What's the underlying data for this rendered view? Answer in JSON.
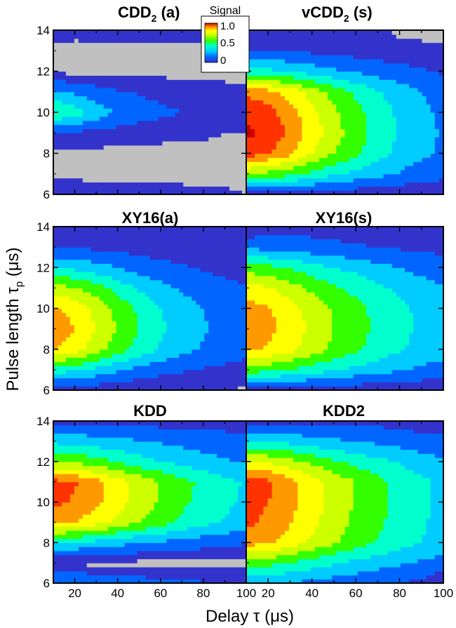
{
  "figure": {
    "ylabel": "Pulse length τ",
    "ylabel_sub": "p",
    "ylabel_unit": "(μs)",
    "xlabel": "Delay τ (μs)",
    "colorbar": {
      "title": "Signal",
      "ticks": [
        "1.0",
        "0.5",
        "0"
      ],
      "tick_values": [
        1.0,
        0.5,
        0.0
      ],
      "colors": [
        "#3333cc",
        "#0066ff",
        "#00ccff",
        "#00ffcc",
        "#33ff00",
        "#ccff00",
        "#ffff00",
        "#ff9900",
        "#ff3300",
        "#cc0000"
      ]
    },
    "below_range_color": "#c0c0c0"
  },
  "chart_data": [
    {
      "type": "heatmap",
      "title": "CDD",
      "title_sub": "2",
      "title_suffix": "(a)",
      "xlim": [
        10,
        100
      ],
      "ylim": [
        6,
        14
      ],
      "x": [
        10,
        20,
        30,
        40,
        50,
        60,
        70,
        80,
        90,
        100
      ],
      "y": [
        6,
        7,
        8,
        9,
        10,
        11,
        12,
        13,
        14
      ],
      "z": [
        [
          0.08,
          0.07,
          0.06,
          0.05,
          0.05,
          0.04,
          0.04,
          0.03,
          0.03,
          0.02
        ],
        [
          0.0,
          0.0,
          0.0,
          0.0,
          0.0,
          0.0,
          0.0,
          0.0,
          0.0,
          0.0
        ],
        [
          0.0,
          0.0,
          0.0,
          0.0,
          0.0,
          0.0,
          0.0,
          0.0,
          0.0,
          0.0
        ],
        [
          0.1,
          0.08,
          0.07,
          0.06,
          0.05,
          0.04,
          0.03,
          0.03,
          0.02,
          0.02
        ],
        [
          0.42,
          0.35,
          0.26,
          0.19,
          0.15,
          0.12,
          0.1,
          0.09,
          0.08,
          0.07
        ],
        [
          0.22,
          0.18,
          0.14,
          0.11,
          0.09,
          0.07,
          0.06,
          0.05,
          0.04,
          0.03
        ],
        [
          0.0,
          0.0,
          0.0,
          0.0,
          0.0,
          0.0,
          0.0,
          0.0,
          0.0,
          0.0
        ],
        [
          0.0,
          0.0,
          0.0,
          0.0,
          0.0,
          0.0,
          0.0,
          0.0,
          0.0,
          0.0
        ],
        [
          0.04,
          0.04,
          0.04,
          0.04,
          0.05,
          0.06,
          0.06,
          0.06,
          0.04,
          0.03
        ]
      ]
    },
    {
      "type": "heatmap",
      "title": "vCDD",
      "title_sub": "2",
      "title_suffix": "(s)",
      "xlim": [
        10,
        100
      ],
      "ylim": [
        6,
        14
      ],
      "x": [
        10,
        20,
        30,
        40,
        50,
        60,
        70,
        80,
        90,
        100
      ],
      "y": [
        6,
        7,
        8,
        9,
        10,
        11,
        12,
        13,
        14
      ],
      "z": [
        [
          0.05,
          0.05,
          0.04,
          0.04,
          0.03,
          0.03,
          0.03,
          0.02,
          0.02,
          0.02
        ],
        [
          0.5,
          0.47,
          0.43,
          0.37,
          0.32,
          0.27,
          0.23,
          0.19,
          0.15,
          0.13
        ],
        [
          0.85,
          0.8,
          0.72,
          0.6,
          0.5,
          0.42,
          0.34,
          0.27,
          0.22,
          0.18
        ],
        [
          0.92,
          0.88,
          0.78,
          0.66,
          0.54,
          0.45,
          0.36,
          0.29,
          0.23,
          0.19
        ],
        [
          0.88,
          0.84,
          0.74,
          0.63,
          0.52,
          0.43,
          0.35,
          0.28,
          0.22,
          0.18
        ],
        [
          0.78,
          0.74,
          0.66,
          0.56,
          0.46,
          0.38,
          0.31,
          0.25,
          0.2,
          0.16
        ],
        [
          0.35,
          0.33,
          0.3,
          0.26,
          0.22,
          0.19,
          0.16,
          0.13,
          0.11,
          0.09
        ],
        [
          0.1,
          0.1,
          0.09,
          0.08,
          0.07,
          0.06,
          0.05,
          0.05,
          0.04,
          0.03
        ],
        [
          0.05,
          0.05,
          0.05,
          0.05,
          0.06,
          0.05,
          0.05,
          0.0,
          0.0,
          0.0
        ]
      ]
    },
    {
      "type": "heatmap",
      "title": "XY16(a)",
      "xlim": [
        10,
        100
      ],
      "ylim": [
        6,
        14
      ],
      "x": [
        10,
        20,
        30,
        40,
        50,
        60,
        70,
        80,
        90,
        100
      ],
      "y": [
        6,
        7,
        8,
        9,
        10,
        11,
        12,
        13,
        14
      ],
      "z": [
        [
          0.03,
          0.03,
          0.03,
          0.02,
          0.02,
          0.02,
          0.02,
          0.02,
          0.02,
          0.01
        ],
        [
          0.35,
          0.32,
          0.27,
          0.22,
          0.17,
          0.13,
          0.11,
          0.09,
          0.08,
          0.07
        ],
        [
          0.7,
          0.65,
          0.55,
          0.45,
          0.36,
          0.29,
          0.23,
          0.19,
          0.15,
          0.12
        ],
        [
          0.76,
          0.7,
          0.6,
          0.49,
          0.4,
          0.32,
          0.26,
          0.21,
          0.17,
          0.14
        ],
        [
          0.72,
          0.67,
          0.57,
          0.47,
          0.38,
          0.3,
          0.24,
          0.2,
          0.16,
          0.13
        ],
        [
          0.55,
          0.51,
          0.44,
          0.36,
          0.29,
          0.23,
          0.19,
          0.16,
          0.13,
          0.11
        ],
        [
          0.3,
          0.28,
          0.24,
          0.2,
          0.16,
          0.13,
          0.11,
          0.09,
          0.07,
          0.06
        ],
        [
          0.1,
          0.09,
          0.08,
          0.07,
          0.06,
          0.05,
          0.05,
          0.04,
          0.03,
          0.03
        ],
        [
          0.04,
          0.04,
          0.04,
          0.05,
          0.05,
          0.05,
          0.05,
          0.04,
          0.04,
          0.04
        ]
      ]
    },
    {
      "type": "heatmap",
      "title": "XY16(s)",
      "xlim": [
        10,
        100
      ],
      "ylim": [
        6,
        14
      ],
      "x": [
        10,
        20,
        30,
        40,
        50,
        60,
        70,
        80,
        90,
        100
      ],
      "y": [
        6,
        7,
        8,
        9,
        10,
        11,
        12,
        13,
        14
      ],
      "z": [
        [
          0.05,
          0.05,
          0.04,
          0.04,
          0.04,
          0.03,
          0.03,
          0.03,
          0.02,
          0.02
        ],
        [
          0.45,
          0.43,
          0.39,
          0.35,
          0.31,
          0.27,
          0.24,
          0.21,
          0.18,
          0.16
        ],
        [
          0.72,
          0.69,
          0.63,
          0.55,
          0.48,
          0.42,
          0.36,
          0.31,
          0.27,
          0.24
        ],
        [
          0.76,
          0.73,
          0.66,
          0.58,
          0.5,
          0.44,
          0.38,
          0.33,
          0.28,
          0.25
        ],
        [
          0.74,
          0.71,
          0.64,
          0.56,
          0.49,
          0.43,
          0.37,
          0.32,
          0.28,
          0.25
        ],
        [
          0.64,
          0.61,
          0.55,
          0.48,
          0.42,
          0.37,
          0.32,
          0.28,
          0.24,
          0.21
        ],
        [
          0.45,
          0.43,
          0.39,
          0.34,
          0.3,
          0.27,
          0.23,
          0.2,
          0.17,
          0.15
        ],
        [
          0.18,
          0.17,
          0.16,
          0.14,
          0.12,
          0.11,
          0.1,
          0.09,
          0.08,
          0.07
        ],
        [
          0.0,
          0.06,
          0.06,
          0.06,
          0.06,
          0.06,
          0.05,
          0.05,
          0.05,
          0.05
        ]
      ]
    },
    {
      "type": "heatmap",
      "title": "KDD",
      "xlim": [
        10,
        100
      ],
      "ylim": [
        6,
        14
      ],
      "x": [
        10,
        20,
        30,
        40,
        50,
        60,
        70,
        80,
        90,
        100
      ],
      "y": [
        6,
        7,
        8,
        9,
        10,
        11,
        12,
        13,
        14
      ],
      "z": [
        [
          0.22,
          0.21,
          0.19,
          0.17,
          0.15,
          0.13,
          0.12,
          0.11,
          0.1,
          0.09
        ],
        [
          0.0,
          0.0,
          0.0,
          0.0,
          0.0,
          0.0,
          0.0,
          0.0,
          0.0,
          0.0
        ],
        [
          0.3,
          0.29,
          0.26,
          0.23,
          0.2,
          0.18,
          0.16,
          0.14,
          0.12,
          0.11
        ],
        [
          0.72,
          0.7,
          0.64,
          0.57,
          0.5,
          0.44,
          0.38,
          0.33,
          0.29,
          0.26
        ],
        [
          0.82,
          0.79,
          0.72,
          0.64,
          0.56,
          0.49,
          0.42,
          0.37,
          0.32,
          0.28
        ],
        [
          0.84,
          0.81,
          0.74,
          0.65,
          0.57,
          0.5,
          0.43,
          0.38,
          0.33,
          0.29
        ],
        [
          0.5,
          0.48,
          0.44,
          0.39,
          0.34,
          0.3,
          0.27,
          0.24,
          0.21,
          0.19
        ],
        [
          0.28,
          0.27,
          0.25,
          0.23,
          0.21,
          0.19,
          0.17,
          0.15,
          0.14,
          0.13
        ],
        [
          0.06,
          0.06,
          0.06,
          0.06,
          0.06,
          0.06,
          0.06,
          0.06,
          0.06,
          0.06
        ]
      ]
    },
    {
      "type": "heatmap",
      "title": "KDD2",
      "xlim": [
        10,
        100
      ],
      "ylim": [
        6,
        14
      ],
      "x": [
        10,
        20,
        30,
        40,
        50,
        60,
        70,
        80,
        90,
        100
      ],
      "y": [
        6,
        7,
        8,
        9,
        10,
        11,
        12,
        13,
        14
      ],
      "z": [
        [
          0.22,
          0.21,
          0.19,
          0.17,
          0.15,
          0.13,
          0.12,
          0.1,
          0.08,
          0.0
        ],
        [
          0.45,
          0.43,
          0.39,
          0.35,
          0.31,
          0.27,
          0.24,
          0.21,
          0.18,
          0.16
        ],
        [
          0.74,
          0.71,
          0.65,
          0.58,
          0.51,
          0.45,
          0.39,
          0.34,
          0.3,
          0.26
        ],
        [
          0.82,
          0.78,
          0.71,
          0.63,
          0.55,
          0.48,
          0.42,
          0.36,
          0.31,
          0.27
        ],
        [
          0.84,
          0.8,
          0.73,
          0.64,
          0.56,
          0.49,
          0.43,
          0.37,
          0.32,
          0.28
        ],
        [
          0.86,
          0.82,
          0.74,
          0.65,
          0.57,
          0.5,
          0.43,
          0.37,
          0.32,
          0.28
        ],
        [
          0.62,
          0.59,
          0.54,
          0.48,
          0.42,
          0.37,
          0.33,
          0.29,
          0.25,
          0.22
        ],
        [
          0.3,
          0.29,
          0.27,
          0.24,
          0.22,
          0.2,
          0.18,
          0.16,
          0.14,
          0.12
        ],
        [
          0.07,
          0.07,
          0.07,
          0.07,
          0.07,
          0.07,
          0.07,
          0.06,
          0.05,
          0.05
        ]
      ]
    }
  ]
}
